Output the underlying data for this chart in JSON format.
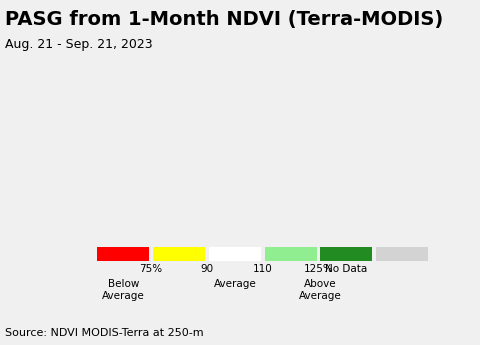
{
  "title": "PASG from 1-Month NDVI (Terra-MODIS)",
  "subtitle": "Aug. 21 - Sep. 21, 2023",
  "source": "Source: NDVI MODIS-Terra at 250-m",
  "legend_colors": [
    "#ff0000",
    "#ffff00",
    "#ffffff",
    "#90ee90",
    "#228b22",
    "#d3d3d3"
  ],
  "legend_labels": [
    "75%",
    "90",
    "110",
    "125%",
    "No Data"
  ],
  "legend_below_label": "Below\nAverage",
  "legend_avg_label": "Average",
  "legend_above_label": "Above\nAverage",
  "map_bg_color": "#aad3df",
  "land_color": "#f5f5f5",
  "mexico_color": "#d8c8b8",
  "canada_color": "#e8e0d8",
  "title_fontsize": 14,
  "subtitle_fontsize": 9,
  "source_fontsize": 8
}
